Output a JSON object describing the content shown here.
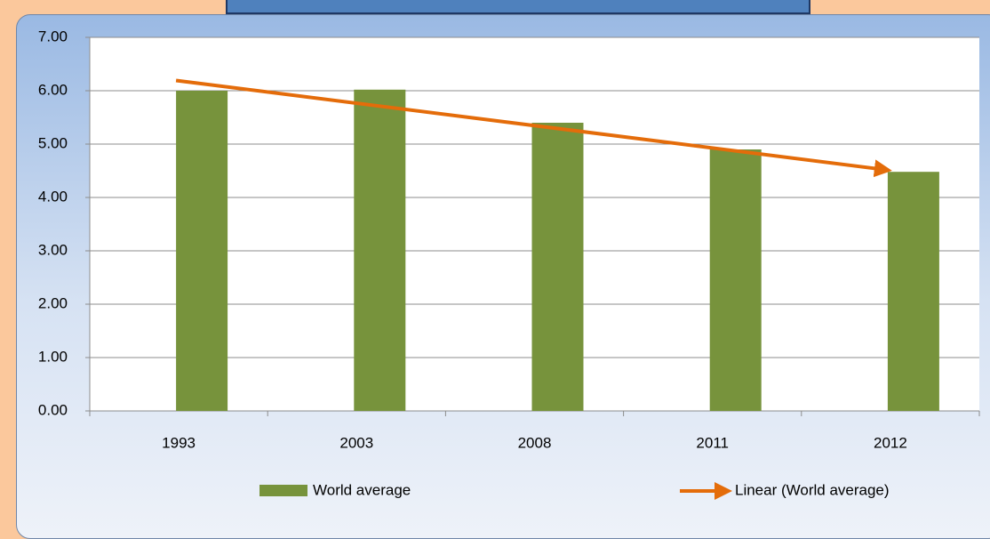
{
  "chart_data": {
    "type": "bar",
    "categories": [
      "1993",
      "2003",
      "2008",
      "2011",
      "2012"
    ],
    "series": [
      {
        "name": "World average",
        "color": "#77933c",
        "values": [
          6.0,
          6.02,
          5.4,
          4.9,
          4.48
        ]
      }
    ],
    "trendline": {
      "name": "Linear (World average)",
      "color": "#e46c0a"
    },
    "ylim": [
      0,
      7
    ],
    "yticks": [
      {
        "value": 0,
        "label": "0.00"
      },
      {
        "value": 1,
        "label": "1.00"
      },
      {
        "value": 2,
        "label": "2.00"
      },
      {
        "value": 3,
        "label": "3.00"
      },
      {
        "value": 4,
        "label": "4.00"
      },
      {
        "value": 5,
        "label": "5.00"
      },
      {
        "value": 6,
        "label": "6.00"
      },
      {
        "value": 7,
        "label": "7.00"
      }
    ],
    "grid": true
  }
}
